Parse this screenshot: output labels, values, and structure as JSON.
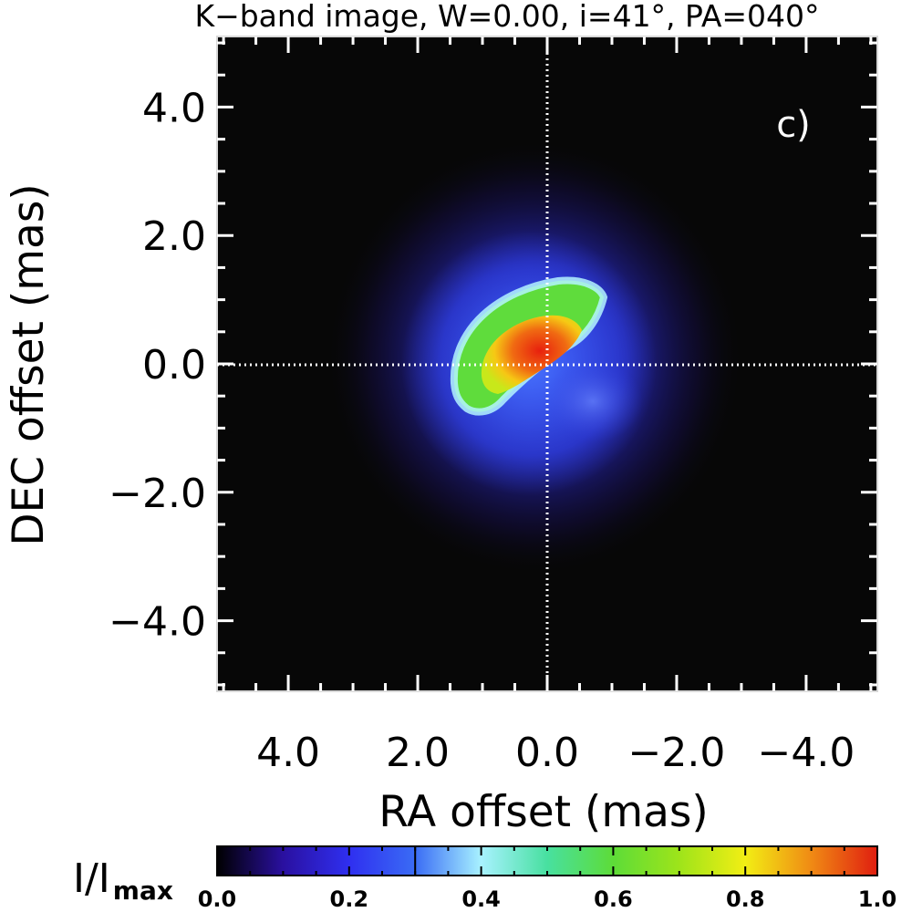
{
  "chart_data": {
    "type": "heatmap",
    "title": "K−band image, W=0.00, i=41°, PA=040°",
    "panel_label": "c)",
    "xlabel": "RA offset (mas)",
    "ylabel": "DEC offset (mas)",
    "xlim": [
      5.1,
      -5.1
    ],
    "ylim": [
      -5.1,
      5.1
    ],
    "x_ticks": [
      {
        "value": 4.0,
        "label": "4.0"
      },
      {
        "value": 2.0,
        "label": "2.0"
      },
      {
        "value": 0.0,
        "label": "0.0"
      },
      {
        "value": -2.0,
        "label": "−2.0"
      },
      {
        "value": -4.0,
        "label": "−4.0"
      }
    ],
    "y_ticks": [
      {
        "value": 4.0,
        "label": "4.0"
      },
      {
        "value": 2.0,
        "label": "2.0"
      },
      {
        "value": 0.0,
        "label": "0.0"
      },
      {
        "value": -2.0,
        "label": "−2.0"
      },
      {
        "value": -4.0,
        "label": "−4.0"
      }
    ],
    "crosshair_at": [
      0.0,
      0.0
    ],
    "peak_intensity_at": [
      0.2,
      0.0
    ],
    "colorbar": {
      "label_main": "I/I",
      "label_sub": "max",
      "range": [
        0.0,
        1.0
      ],
      "ticks": [
        {
          "value": 0.0,
          "label": "0.0"
        },
        {
          "value": 0.2,
          "label": "0.2"
        },
        {
          "value": 0.4,
          "label": "0.4"
        },
        {
          "value": 0.6,
          "label": "0.6"
        },
        {
          "value": 0.8,
          "label": "0.8"
        },
        {
          "value": 1.0,
          "label": "1.0"
        }
      ],
      "stops": [
        {
          "v": 0.0,
          "color": "#000000"
        },
        {
          "v": 0.1,
          "color": "#2a10a0"
        },
        {
          "v": 0.2,
          "color": "#2f2ff0"
        },
        {
          "v": 0.3,
          "color": "#3a6cf5"
        },
        {
          "v": 0.4,
          "color": "#a8f2ff"
        },
        {
          "v": 0.5,
          "color": "#48e0a0"
        },
        {
          "v": 0.6,
          "color": "#5ddc38"
        },
        {
          "v": 0.7,
          "color": "#9ee41a"
        },
        {
          "v": 0.8,
          "color": "#f2ee14"
        },
        {
          "v": 0.9,
          "color": "#f08a14"
        },
        {
          "v": 1.0,
          "color": "#e01e10"
        }
      ]
    }
  }
}
